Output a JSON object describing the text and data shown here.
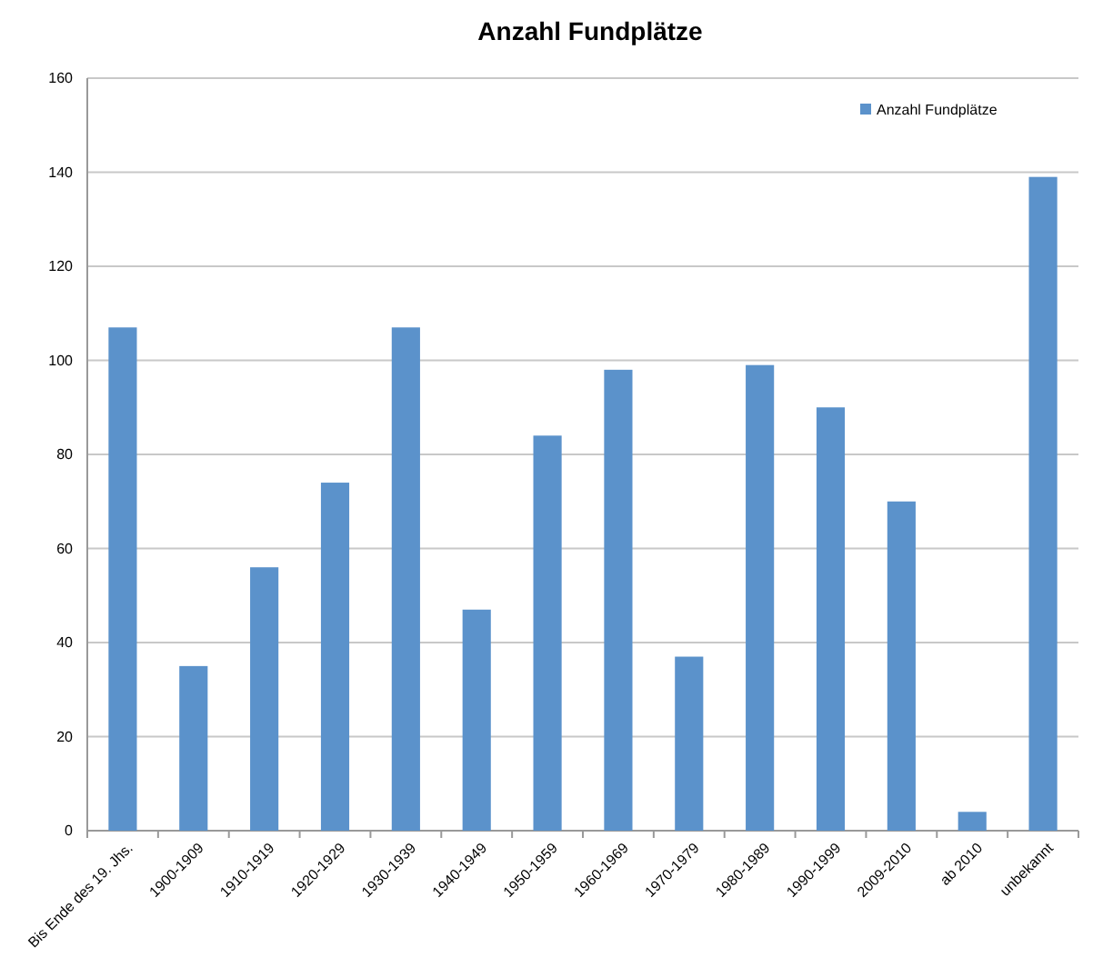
{
  "chart_data": {
    "type": "bar",
    "title": "Anzahl Fundplätze",
    "categories": [
      "Bis Ende des 19. Jhs.",
      "1900-1909",
      "1910-1919",
      "1920-1929",
      "1930-1939",
      "1940-1949",
      "1950-1959",
      "1960-1969",
      "1970-1979",
      "1980-1989",
      "1990-1999",
      "2009-2010",
      "ab 2010",
      "unbekannt"
    ],
    "series": [
      {
        "name": "Anzahl Fundplätze",
        "color": "#5b92cb",
        "values": [
          107,
          35,
          56,
          74,
          107,
          47,
          84,
          98,
          37,
          99,
          90,
          70,
          4,
          139
        ]
      }
    ],
    "ylim": [
      0,
      160
    ],
    "yticks": [
      0,
      20,
      40,
      60,
      80,
      100,
      120,
      140,
      160
    ],
    "grid": "y",
    "legend": "top right"
  }
}
